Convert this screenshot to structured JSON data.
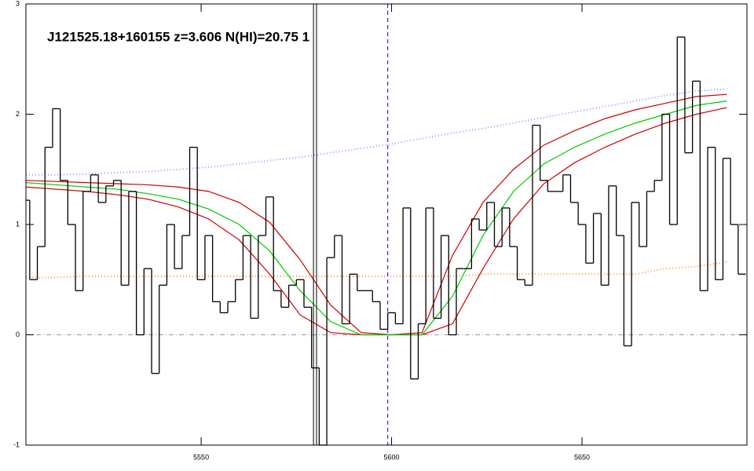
{
  "chart_data": {
    "type": "line",
    "title": "J121525.18+160155 z=3.606 N(HI)=20.75 1",
    "xlim": [
      5504,
      5693.3
    ],
    "ylim": [
      -1,
      3
    ],
    "xticks": [
      5550,
      5600,
      5650
    ],
    "yticks": [
      -1,
      0,
      1,
      2,
      3
    ],
    "flux": {
      "color": "#000000",
      "x": [
        5504,
        5506,
        5508,
        5510,
        5512,
        5514,
        5516,
        5518,
        5520,
        5522,
        5524,
        5526,
        5528,
        5530,
        5532,
        5534,
        5536,
        5538,
        5540,
        5542,
        5544,
        5546,
        5548,
        5550,
        5552,
        5554,
        5556,
        5558,
        5560,
        5562,
        5564,
        5566,
        5568,
        5570,
        5572,
        5574,
        5576,
        5578,
        5580,
        5582,
        5584,
        5586,
        5588,
        5590,
        5592,
        5594,
        5596,
        5598,
        5600,
        5602,
        5604,
        5606,
        5608,
        5610,
        5612,
        5614,
        5616,
        5618,
        5620,
        5622,
        5624,
        5626,
        5628,
        5630,
        5632,
        5634,
        5636,
        5638,
        5640,
        5642,
        5644,
        5646,
        5648,
        5650,
        5652,
        5654,
        5656,
        5658,
        5660,
        5662,
        5664,
        5666,
        5668,
        5670,
        5672,
        5674,
        5676,
        5678,
        5680,
        5682,
        5684,
        5686,
        5688,
        5690,
        5692
      ],
      "values": [
        1.22,
        0.5,
        0.8,
        1.7,
        2.05,
        1.4,
        1.0,
        0.4,
        1.3,
        1.45,
        1.2,
        1.35,
        1.4,
        0.45,
        1.3,
        0.0,
        0.6,
        -0.35,
        0.45,
        1.0,
        0.6,
        0.9,
        1.7,
        0.5,
        0.9,
        0.3,
        0.2,
        0.3,
        0.5,
        0.9,
        0.15,
        0.9,
        1.25,
        0.4,
        0.25,
        0.45,
        0.5,
        0.25,
        -0.3,
        -1.0,
        0.7,
        0.9,
        0.1,
        0.55,
        0.4,
        0.4,
        0.3,
        0.05,
        0.2,
        0.1,
        1.15,
        -0.4,
        0.1,
        1.15,
        0.15,
        0.9,
        0.0,
        0.6,
        0.6,
        1.05,
        0.95,
        1.2,
        0.8,
        1.15,
        0.8,
        0.5,
        0.45,
        1.9,
        1.4,
        1.3,
        1.3,
        1.45,
        1.2,
        1.0,
        0.65,
        1.1,
        0.45,
        1.35,
        0.9,
        -0.1,
        1.2,
        0.8,
        1.3,
        1.4,
        2.0,
        1.0,
        2.7,
        1.65,
        2.3,
        0.4,
        1.7,
        0.5,
        1.6,
        1.0,
        0.55
      ]
    },
    "model_x": [
      5504,
      5512,
      5520,
      5528,
      5536,
      5544,
      5552,
      5560,
      5568,
      5576,
      5584,
      5592,
      5600,
      5608,
      5616,
      5624,
      5632,
      5640,
      5648,
      5656,
      5664,
      5672,
      5680,
      5688
    ],
    "models": [
      {
        "color": "#9999ff",
        "dash": "dotted",
        "values": [
          1.45,
          1.45,
          1.46,
          1.47,
          1.48,
          1.5,
          1.52,
          1.55,
          1.58,
          1.61,
          1.65,
          1.69,
          1.73,
          1.78,
          1.83,
          1.87,
          1.92,
          1.97,
          2.02,
          2.07,
          2.12,
          2.17,
          2.21,
          2.23
        ]
      },
      {
        "color": "#ff9944",
        "dash": "dotted",
        "values": [
          0.52,
          0.52,
          0.53,
          0.53,
          0.53,
          0.53,
          0.53,
          0.53,
          0.53,
          0.53,
          0.53,
          0.53,
          0.53,
          0.53,
          0.53,
          0.55,
          0.55,
          0.55,
          0.55,
          0.55,
          0.55,
          0.6,
          0.62,
          0.66
        ]
      },
      {
        "color": "#cc0000",
        "dash": "solid",
        "values": [
          1.4,
          1.39,
          1.38,
          1.37,
          1.36,
          1.34,
          1.3,
          1.2,
          1.02,
          0.68,
          0.27,
          0.02,
          0.0,
          0.02,
          0.72,
          1.2,
          1.5,
          1.72,
          1.85,
          1.96,
          2.04,
          2.1,
          2.16,
          2.18
        ]
      },
      {
        "color": "#cc0000",
        "dash": "solid",
        "values": [
          1.34,
          1.32,
          1.3,
          1.27,
          1.23,
          1.16,
          1.05,
          0.86,
          0.55,
          0.18,
          0.02,
          0.0,
          0.0,
          0.0,
          0.1,
          0.6,
          1.05,
          1.37,
          1.56,
          1.7,
          1.82,
          1.92,
          2.0,
          2.06
        ]
      },
      {
        "color": "#00cc00",
        "dash": "solid",
        "values": [
          1.38,
          1.36,
          1.34,
          1.32,
          1.28,
          1.23,
          1.14,
          1.0,
          0.76,
          0.4,
          0.12,
          0.0,
          0.0,
          0.0,
          0.35,
          0.9,
          1.3,
          1.55,
          1.7,
          1.82,
          1.92,
          2.0,
          2.08,
          2.12
        ]
      }
    ],
    "vlines": [
      {
        "x": 5579.5,
        "color": "#000000",
        "dash": "solid"
      },
      {
        "x": 5580.3,
        "color": "#000000",
        "dash": "solid"
      },
      {
        "x": 5599,
        "color": "#0000cc",
        "dash": "dashed"
      }
    ],
    "hlines": [
      {
        "y": 0,
        "color": "#999999",
        "dash": "dashdot"
      }
    ]
  }
}
